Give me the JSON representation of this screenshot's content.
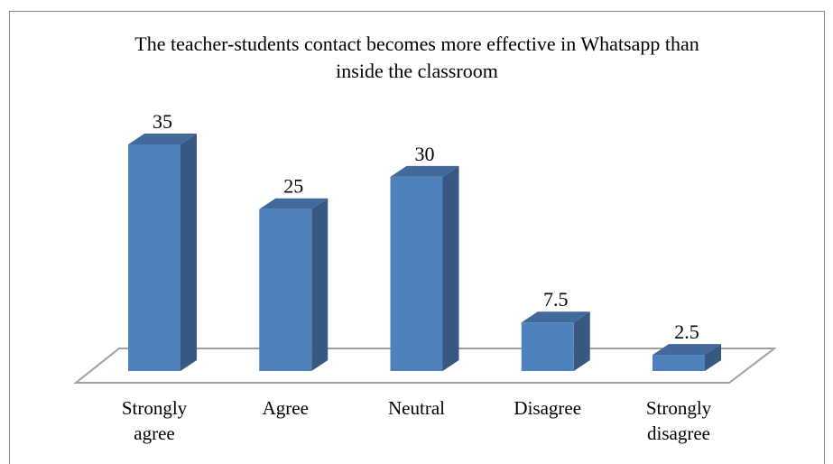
{
  "chart_data": {
    "type": "bar3d",
    "title": "The teacher-students contact becomes more effective in Whatsapp than inside the classroom",
    "categories": [
      "Strongly agree",
      "Agree",
      "Neutral",
      "Disagree",
      "Strongly disagree"
    ],
    "values": [
      35,
      25,
      30,
      7.5,
      2.5
    ],
    "color": "#4f81bd"
  }
}
